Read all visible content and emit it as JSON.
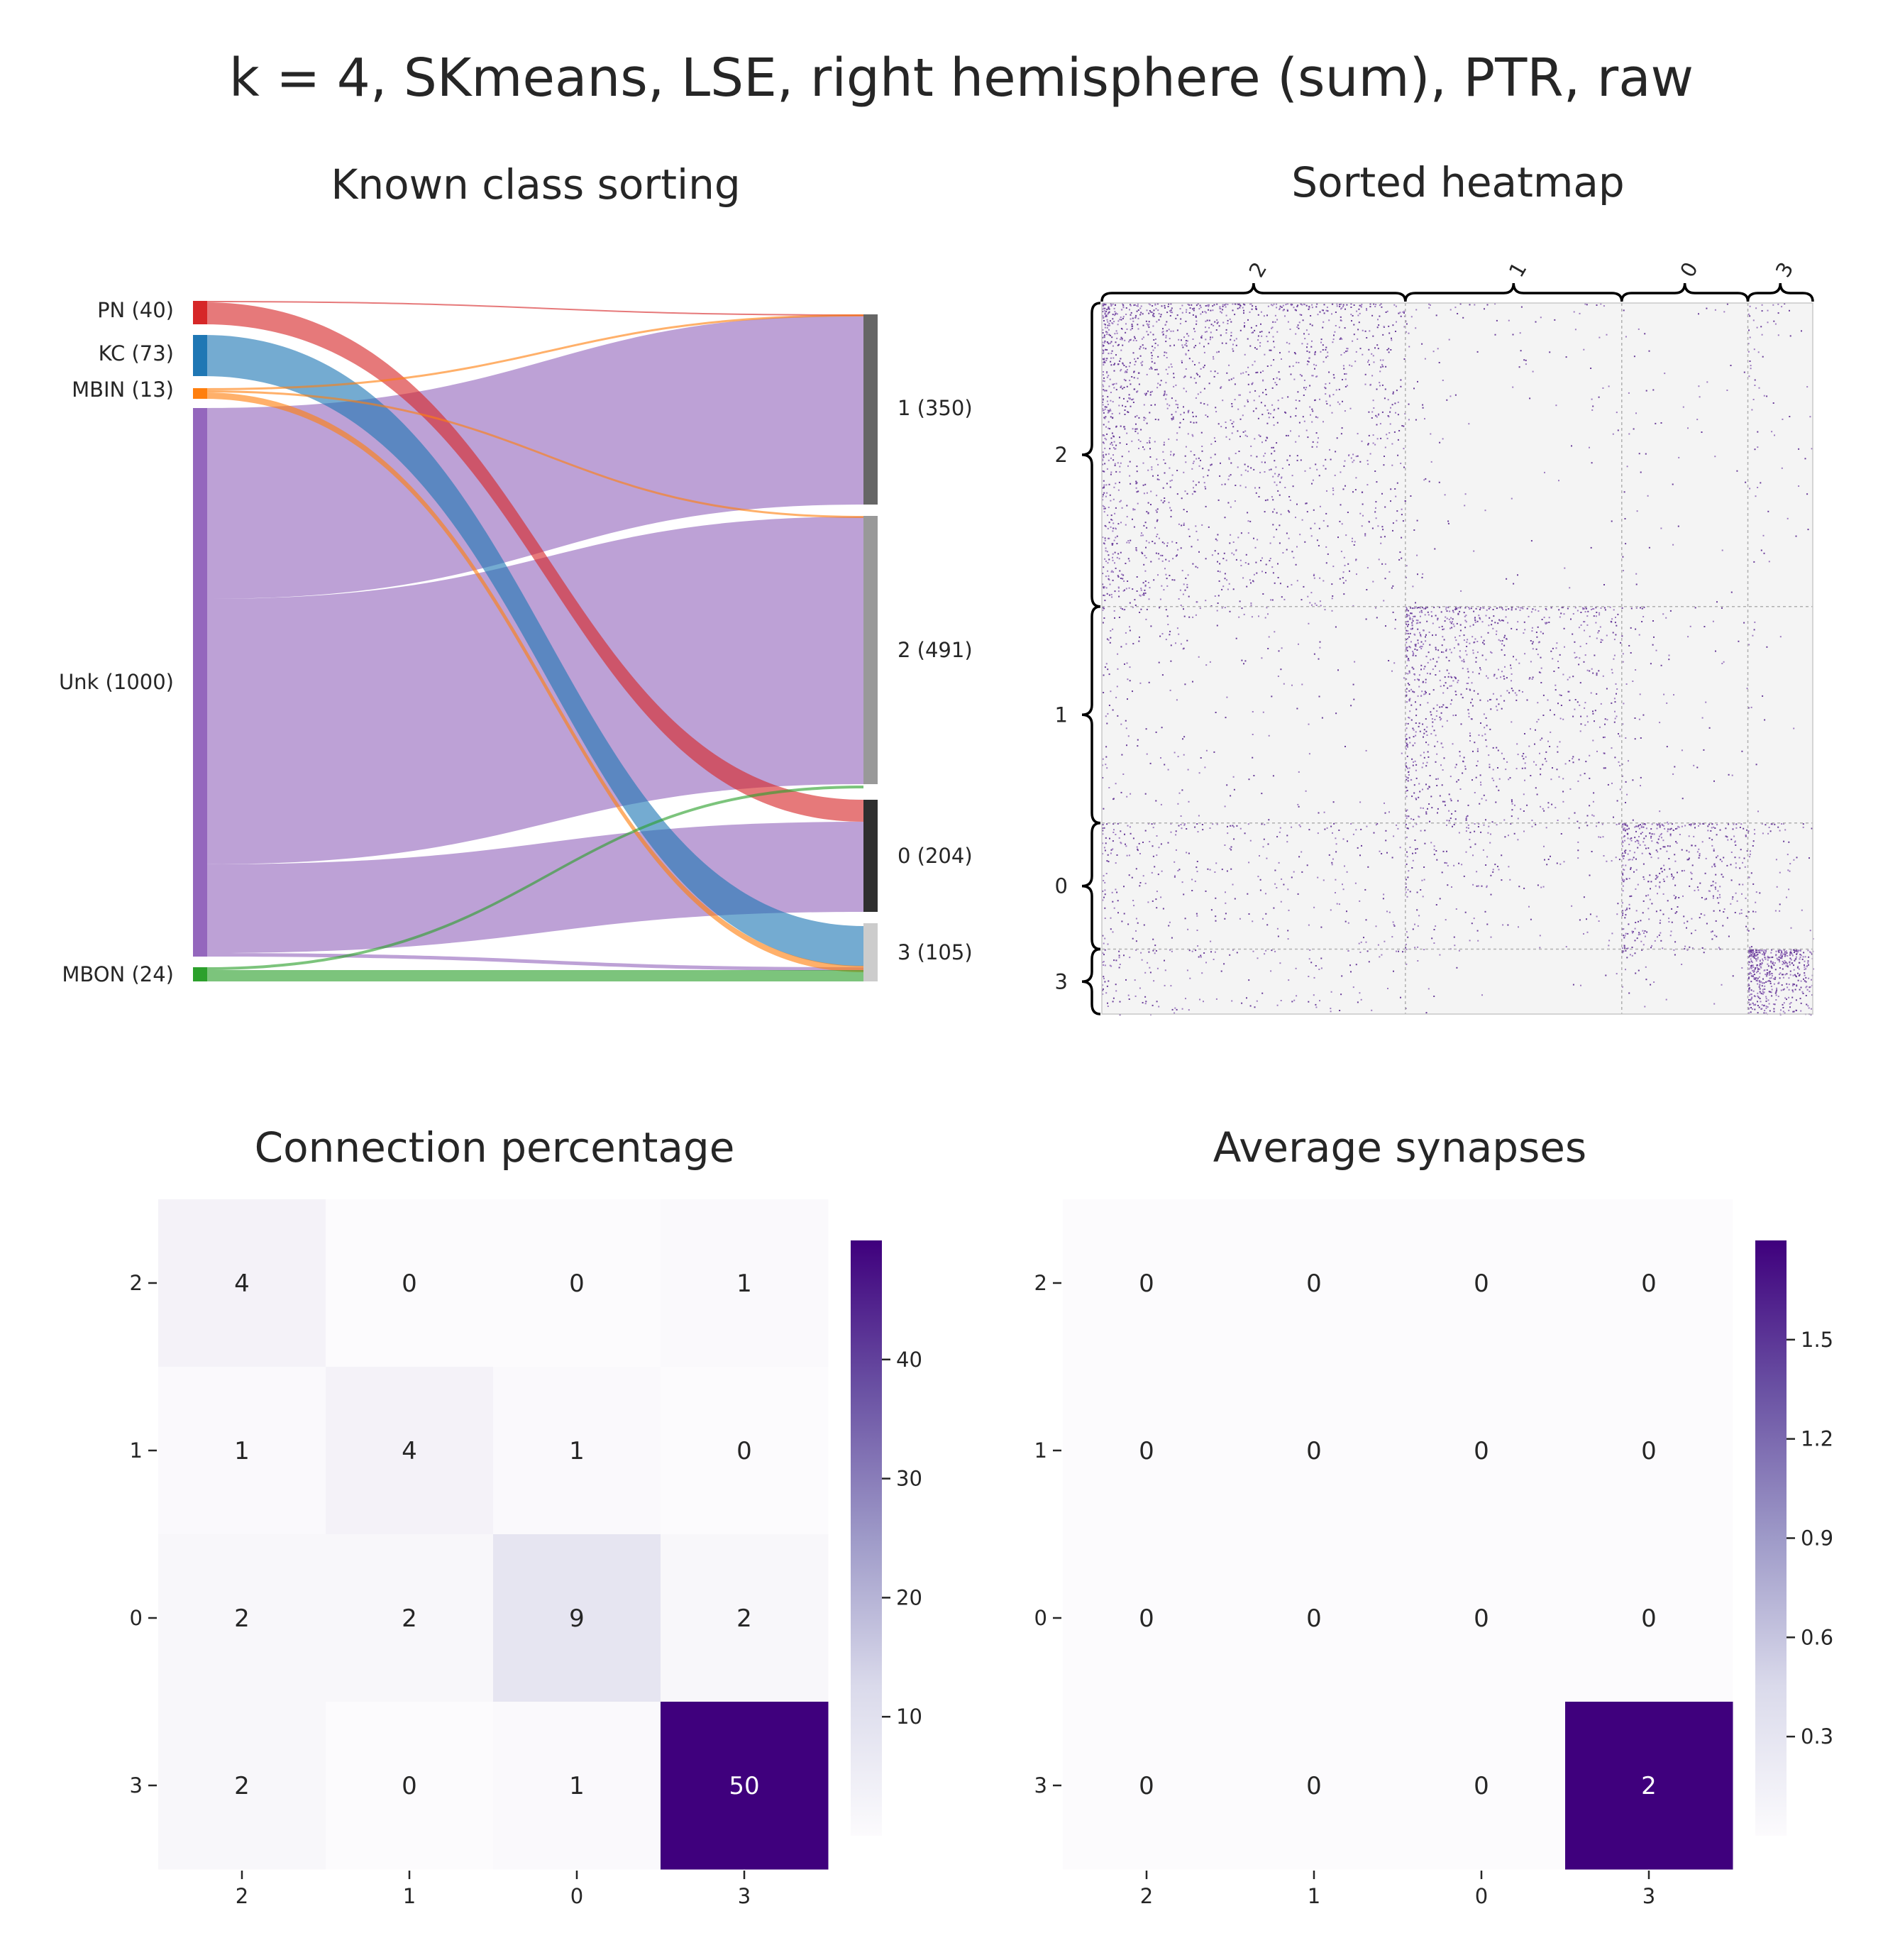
{
  "title": "k = 4, SKmeans, LSE, right hemisphere (sum), PTR, raw",
  "sankey": {
    "title": "Known class sorting",
    "sources": [
      {
        "label": "PN (40)",
        "color": "#d62728"
      },
      {
        "label": "KC (73)",
        "color": "#1f77b4"
      },
      {
        "label": "MBIN (13)",
        "color": "#ff7f0e"
      },
      {
        "label": "Unk (1000)",
        "color": "#9467bd"
      },
      {
        "label": "MBON (24)",
        "color": "#2ca02c"
      }
    ],
    "targets": [
      {
        "label": "1 (350)",
        "color": "#666666"
      },
      {
        "label": "2 (491)",
        "color": "#999999"
      },
      {
        "label": "0 (204)",
        "color": "#2f2f2f"
      },
      {
        "label": "3 (105)",
        "color": "#cccccc"
      }
    ]
  },
  "heatmap": {
    "title": "Sorted heatmap",
    "order": [
      "2",
      "1",
      "0",
      "3"
    ],
    "sizes": [
      491,
      350,
      204,
      105
    ]
  },
  "chart_data": [
    {
      "type": "heatmap",
      "title": "Connection percentage",
      "rows": [
        "2",
        "1",
        "0",
        "3"
      ],
      "cols": [
        "2",
        "1",
        "0",
        "3"
      ],
      "values": [
        [
          4,
          0,
          0,
          1
        ],
        [
          1,
          4,
          1,
          0
        ],
        [
          2,
          2,
          9,
          2
        ],
        [
          2,
          0,
          1,
          50
        ]
      ],
      "colorbar": {
        "ticks": [
          "10",
          "20",
          "30",
          "40"
        ],
        "range": [
          0,
          50
        ]
      }
    },
    {
      "type": "heatmap",
      "title": "Average synapses",
      "rows": [
        "2",
        "1",
        "0",
        "3"
      ],
      "cols": [
        "2",
        "1",
        "0",
        "3"
      ],
      "values": [
        [
          0,
          0,
          0,
          0
        ],
        [
          0,
          0,
          0,
          0
        ],
        [
          0,
          0,
          0,
          0
        ],
        [
          0,
          0,
          0,
          2
        ]
      ],
      "colorbar": {
        "ticks": [
          "0.3",
          "0.6",
          "0.9",
          "1.2",
          "1.5"
        ],
        "range": [
          0,
          1.8
        ]
      }
    }
  ]
}
